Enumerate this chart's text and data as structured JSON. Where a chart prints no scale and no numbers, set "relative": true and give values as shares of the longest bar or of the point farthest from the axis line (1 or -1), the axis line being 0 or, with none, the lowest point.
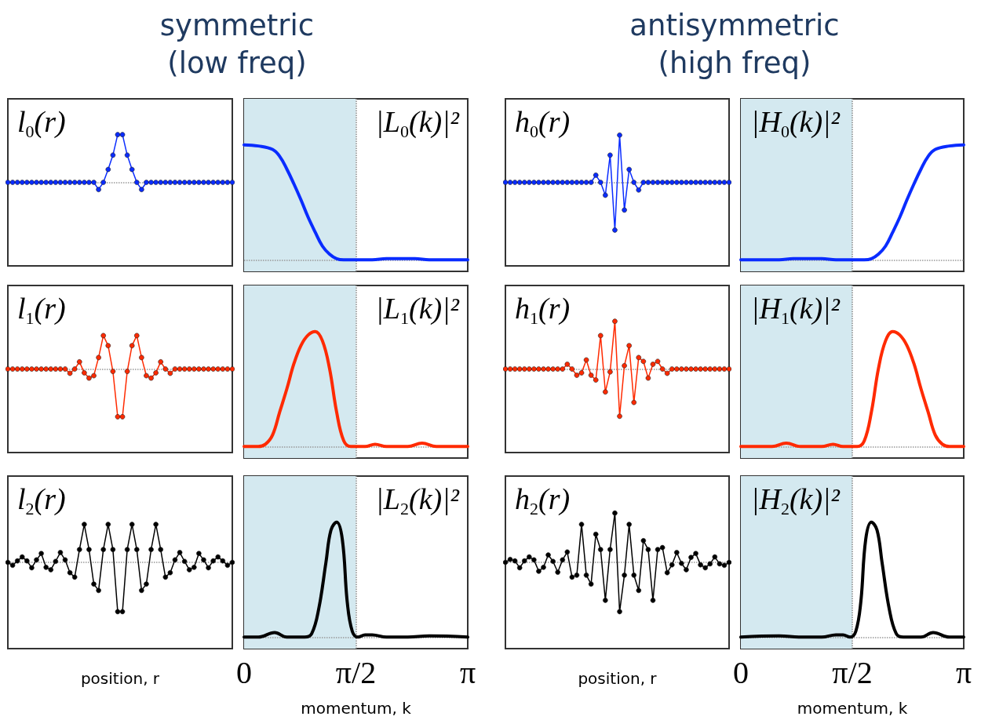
{
  "chart_data": [
    {
      "type": "line",
      "title": "l$_{0}$(r)",
      "subtitle": "symmetric\n(low freq)",
      "relative": true,
      "marker": "circle",
      "color": "#0a2cff",
      "categories": [
        null,
        null,
        null,
        null,
        null,
        null,
        null,
        null,
        null,
        null,
        null,
        null,
        null,
        null,
        null,
        null,
        null,
        null,
        null,
        null,
        null,
        null,
        null,
        null,
        null,
        null,
        null,
        null,
        null,
        null,
        null,
        null,
        null,
        null,
        null,
        null,
        null,
        null,
        null,
        null,
        null,
        null,
        null,
        null,
        null,
        null,
        null,
        null
      ],
      "values": [
        0,
        0,
        0,
        0,
        0,
        0,
        0,
        0,
        0,
        0,
        0,
        0,
        0,
        0,
        0,
        0,
        0,
        0,
        0,
        -0.15,
        0,
        0.27,
        0.57,
        1,
        1,
        0.57,
        0.27,
        0,
        -0.15,
        0,
        0,
        0,
        0,
        0,
        0,
        0,
        0,
        0,
        0,
        0,
        0,
        0,
        0,
        0,
        0,
        0,
        0,
        0
      ],
      "ref_lines": [
        {
          "axis": "y",
          "value": 0,
          "color": "#999999",
          "line_style": "dotted"
        }
      ]
    },
    {
      "type": "line",
      "title": "|L$_{0}$(k)|²",
      "relative": true,
      "color": "#0a2cff",
      "xlim": [
        0,
        3.1416
      ],
      "tick_labels": false,
      "x": [
        0,
        0.2,
        0.4,
        0.5,
        0.6,
        0.7,
        0.8,
        0.9,
        1.0,
        1.1,
        1.2,
        1.3,
        1.4,
        1.57,
        1.8,
        2.0,
        2.2,
        2.4,
        2.6,
        2.8,
        3.1416
      ],
      "values": [
        1,
        0.99,
        0.96,
        0.9,
        0.79,
        0.66,
        0.52,
        0.37,
        0.24,
        0.12,
        0.05,
        0.01,
        0,
        0,
        0,
        0.01,
        0.01,
        0.01,
        0,
        0,
        0
      ],
      "bands": [
        {
          "axis": "x",
          "from": 0,
          "to": 1.5708,
          "color": "#d4e9f0"
        }
      ],
      "ref_lines": [
        {
          "axis": "x",
          "value": 1.5708,
          "color": "#888888",
          "line_style": "dotted"
        },
        {
          "axis": "y",
          "value": 0,
          "color": "#999999",
          "line_style": "dotted"
        }
      ]
    },
    {
      "type": "line",
      "title": "h$_{0}$(r)",
      "subtitle": "antisymmetric\n(high freq)",
      "relative": true,
      "marker": "circle",
      "color": "#0a2cff",
      "categories": [
        null,
        null,
        null,
        null,
        null,
        null,
        null,
        null,
        null,
        null,
        null,
        null,
        null,
        null,
        null,
        null,
        null,
        null,
        null,
        null,
        null,
        null,
        null,
        null,
        null,
        null,
        null,
        null,
        null,
        null,
        null,
        null,
        null,
        null,
        null,
        null,
        null,
        null,
        null,
        null,
        null,
        null,
        null,
        null,
        null,
        null,
        null,
        null
      ],
      "values": [
        0,
        0,
        0,
        0,
        0,
        0,
        0,
        0,
        0,
        0,
        0,
        0,
        0,
        0,
        0,
        0,
        0,
        0,
        0,
        0.15,
        0,
        -0.27,
        0.57,
        -1,
        0.99,
        -0.58,
        0.27,
        0,
        -0.16,
        0,
        0,
        0,
        0,
        0,
        0,
        0,
        0,
        0,
        0,
        0,
        0,
        0,
        0,
        0,
        0,
        0,
        0,
        0
      ],
      "ref_lines": [
        {
          "axis": "y",
          "value": 0,
          "color": "#999999",
          "line_style": "dotted"
        }
      ]
    },
    {
      "type": "line",
      "title": "|H$_{0}$(k)|²",
      "relative": true,
      "color": "#0a2cff",
      "xlim": [
        0,
        3.1416
      ],
      "tick_labels": false,
      "x": [
        0,
        0.34,
        0.54,
        0.74,
        0.94,
        1.14,
        1.34,
        1.57,
        1.74,
        1.84,
        1.94,
        2.04,
        2.14,
        2.24,
        2.34,
        2.44,
        2.54,
        2.64,
        2.74,
        2.94,
        3.1416
      ],
      "values": [
        0,
        0,
        0,
        0.01,
        0.01,
        0.01,
        0,
        0,
        0,
        0.01,
        0.05,
        0.12,
        0.24,
        0.37,
        0.52,
        0.66,
        0.79,
        0.9,
        0.96,
        0.99,
        1
      ],
      "bands": [
        {
          "axis": "x",
          "from": 0,
          "to": 1.5708,
          "color": "#d4e9f0"
        }
      ],
      "ref_lines": [
        {
          "axis": "x",
          "value": 1.5708,
          "color": "#888888",
          "line_style": "dotted"
        },
        {
          "axis": "y",
          "value": 0,
          "color": "#999999",
          "line_style": "dotted"
        }
      ]
    },
    {
      "type": "line",
      "title": "l$_{1}$(r)",
      "relative": true,
      "marker": "circle",
      "color": "#ff2a00",
      "categories": [
        null,
        null,
        null,
        null,
        null,
        null,
        null,
        null,
        null,
        null,
        null,
        null,
        null,
        null,
        null,
        null,
        null,
        null,
        null,
        null,
        null,
        null,
        null,
        null,
        null,
        null,
        null,
        null,
        null,
        null,
        null,
        null,
        null,
        null,
        null,
        null,
        null,
        null,
        null,
        null,
        null,
        null,
        null,
        null,
        null,
        null,
        null,
        null
      ],
      "values": [
        0,
        0,
        0,
        0,
        0,
        0,
        0,
        0,
        0,
        0,
        0,
        0,
        0,
        -0.09,
        0,
        0.15,
        -0.08,
        -0.19,
        -0.14,
        0.24,
        0.7,
        0.49,
        -0.05,
        -1,
        -1,
        -0.05,
        0.49,
        0.7,
        0.24,
        -0.14,
        -0.19,
        -0.08,
        0.15,
        0,
        -0.09,
        0,
        0,
        0,
        0,
        0,
        0,
        0,
        0,
        0,
        0,
        0,
        0,
        0
      ],
      "ref_lines": [
        {
          "axis": "y",
          "value": 0,
          "color": "#999999",
          "line_style": "dotted"
        }
      ]
    },
    {
      "type": "line",
      "title": "|L$_{1}$(k)|²",
      "relative": true,
      "color": "#ff2a00",
      "xlim": [
        0,
        3.1416
      ],
      "tick_labels": false,
      "x": [
        0,
        0.2,
        0.3,
        0.4,
        0.5,
        0.6,
        0.7,
        0.8,
        0.9,
        1.0,
        1.1,
        1.2,
        1.3,
        1.4,
        1.5,
        1.7,
        1.84,
        2.0,
        2.3,
        2.5,
        2.7,
        3.1416
      ],
      "values": [
        0,
        0,
        0.02,
        0.1,
        0.3,
        0.5,
        0.72,
        0.88,
        0.97,
        1,
        0.92,
        0.68,
        0.3,
        0.05,
        0,
        0,
        0.02,
        0,
        0,
        0.03,
        0,
        0
      ],
      "bands": [
        {
          "axis": "x",
          "from": 0,
          "to": 1.5708,
          "color": "#d4e9f0"
        }
      ],
      "ref_lines": [
        {
          "axis": "x",
          "value": 1.5708,
          "color": "#888888",
          "line_style": "dotted"
        },
        {
          "axis": "y",
          "value": 0,
          "color": "#999999",
          "line_style": "dotted"
        }
      ]
    },
    {
      "type": "line",
      "title": "h$_{1}$(r)",
      "relative": true,
      "marker": "circle",
      "color": "#ff2a00",
      "categories": [
        null,
        null,
        null,
        null,
        null,
        null,
        null,
        null,
        null,
        null,
        null,
        null,
        null,
        null,
        null,
        null,
        null,
        null,
        null,
        null,
        null,
        null,
        null,
        null,
        null,
        null,
        null,
        null,
        null,
        null,
        null,
        null,
        null,
        null,
        null,
        null,
        null,
        null,
        null,
        null,
        null,
        null,
        null,
        null,
        null,
        null,
        null,
        null
      ],
      "values": [
        0,
        0,
        0,
        0,
        0,
        0,
        0,
        0,
        0,
        0,
        0,
        0,
        0,
        0.1,
        0,
        -0.13,
        -0.08,
        0.19,
        -0.13,
        -0.23,
        0.7,
        -0.48,
        -0.06,
        1,
        -0.99,
        0.07,
        0.49,
        -0.7,
        0.24,
        0.16,
        -0.19,
        0.1,
        0.16,
        0,
        -0.09,
        0,
        0,
        0,
        0,
        0,
        0,
        0,
        0,
        0,
        0,
        0,
        0,
        0
      ],
      "ref_lines": [
        {
          "axis": "y",
          "value": 0,
          "color": "#999999",
          "line_style": "dotted"
        }
      ]
    },
    {
      "type": "line",
      "title": "|H$_{1}$(k)|²",
      "relative": true,
      "color": "#ff2a00",
      "xlim": [
        0,
        3.1416
      ],
      "tick_labels": false,
      "x": [
        0,
        0.44,
        0.64,
        0.84,
        1.14,
        1.3,
        1.44,
        1.64,
        1.74,
        1.84,
        1.94,
        2.04,
        2.14,
        2.24,
        2.34,
        2.44,
        2.54,
        2.64,
        2.74,
        2.84,
        2.94,
        3.1416
      ],
      "values": [
        0,
        0,
        0.03,
        0,
        0,
        0.02,
        0,
        0,
        0.05,
        0.3,
        0.68,
        0.92,
        1,
        0.97,
        0.88,
        0.72,
        0.5,
        0.3,
        0.1,
        0.02,
        0,
        0
      ],
      "bands": [
        {
          "axis": "x",
          "from": 0,
          "to": 1.5708,
          "color": "#d4e9f0"
        }
      ],
      "ref_lines": [
        {
          "axis": "x",
          "value": 1.5708,
          "color": "#888888",
          "line_style": "dotted"
        },
        {
          "axis": "y",
          "value": 0,
          "color": "#999999",
          "line_style": "dotted"
        }
      ]
    },
    {
      "type": "line",
      "title": "l$_{2}$(r)",
      "xlabel": "position, r",
      "relative": true,
      "marker": "circle",
      "color": "#000000",
      "categories": [
        null,
        null,
        null,
        null,
        null,
        null,
        null,
        null,
        null,
        null,
        null,
        null,
        null,
        null,
        null,
        null,
        null,
        null,
        null,
        null,
        null,
        null,
        null,
        null,
        null,
        null,
        null,
        null,
        null,
        null,
        null,
        null,
        null,
        null,
        null,
        null,
        null,
        null,
        null,
        null,
        null,
        null,
        null,
        null,
        null,
        null,
        null,
        null
      ],
      "values": [
        0,
        -0.06,
        0.03,
        0.11,
        0.03,
        -0.11,
        0.05,
        0.18,
        -0.1,
        -0.15,
        0.02,
        0.2,
        0.05,
        -0.21,
        -0.3,
        0.26,
        0.77,
        0.26,
        -0.44,
        -0.57,
        0.26,
        0.77,
        0.26,
        -1,
        -1,
        0.26,
        0.77,
        0.26,
        -0.57,
        -0.44,
        0.26,
        0.77,
        0.26,
        -0.3,
        -0.21,
        0.05,
        0.2,
        0.02,
        -0.15,
        -0.1,
        0.18,
        0.05,
        -0.11,
        0.03,
        0.11,
        0.03,
        -0.06,
        0
      ],
      "ref_lines": [
        {
          "axis": "y",
          "value": 0,
          "color": "#999999",
          "line_style": "dotted"
        }
      ]
    },
    {
      "type": "line",
      "title": "|L$_{2}$(k)|²",
      "xlabel": "momentum, k",
      "relative": true,
      "color": "#000000",
      "xlim": [
        0,
        3.1416
      ],
      "xticks": [
        {
          "value": 0,
          "label": "0"
        },
        {
          "value": 1.5708,
          "label": "π/2"
        },
        {
          "value": 3.1416,
          "label": "π"
        }
      ],
      "tick_labels": "x",
      "x": [
        0,
        0.2,
        0.43,
        0.6,
        0.85,
        0.95,
        1.05,
        1.15,
        1.22,
        1.3,
        1.38,
        1.45,
        1.52,
        1.6,
        1.7,
        1.8,
        2.0,
        2.3,
        2.6,
        3.1416
      ],
      "values": [
        0,
        0,
        0.04,
        0,
        0,
        0.03,
        0.25,
        0.65,
        0.93,
        1,
        0.85,
        0.3,
        0.05,
        0,
        0.02,
        0.02,
        0,
        0,
        0.01,
        0
      ],
      "bands": [
        {
          "axis": "x",
          "from": 0,
          "to": 1.5708,
          "color": "#d4e9f0"
        }
      ],
      "ref_lines": [
        {
          "axis": "x",
          "value": 1.5708,
          "color": "#888888",
          "line_style": "dotted"
        },
        {
          "axis": "y",
          "value": 0,
          "color": "#999999",
          "line_style": "dotted"
        }
      ]
    },
    {
      "type": "line",
      "title": "h$_{2}$(r)",
      "xlabel": "position, r",
      "relative": true,
      "marker": "circle",
      "color": "#000000",
      "categories": [
        null,
        null,
        null,
        null,
        null,
        null,
        null,
        null,
        null,
        null,
        null,
        null,
        null,
        null,
        null,
        null,
        null,
        null,
        null,
        null,
        null,
        null,
        null,
        null,
        null,
        null,
        null,
        null,
        null,
        null,
        null,
        null,
        null,
        null,
        null,
        null,
        null,
        null,
        null,
        null,
        null,
        null,
        null,
        null,
        null,
        null,
        null,
        null
      ],
      "values": [
        0,
        0.06,
        0.03,
        -0.11,
        0.03,
        0.11,
        0.05,
        -0.18,
        -0.1,
        0.15,
        0.02,
        -0.2,
        0.05,
        0.21,
        -0.3,
        -0.26,
        0.77,
        -0.26,
        -0.44,
        0.57,
        0.26,
        -0.77,
        0.26,
        1,
        -1,
        -0.26,
        0.77,
        -0.26,
        -0.57,
        0.44,
        0.26,
        -0.77,
        0.26,
        0.3,
        -0.21,
        -0.05,
        0.2,
        -0.02,
        -0.15,
        0.1,
        0.18,
        -0.05,
        -0.11,
        -0.03,
        0.11,
        -0.03,
        -0.06,
        0
      ],
      "ref_lines": [
        {
          "axis": "y",
          "value": 0,
          "color": "#999999",
          "line_style": "dotted"
        }
      ]
    },
    {
      "type": "line",
      "title": "|H$_{2}$(k)|²",
      "xlabel": "momentum, k",
      "relative": true,
      "color": "#000000",
      "xlim": [
        0,
        3.1416
      ],
      "xticks": [
        {
          "value": 0,
          "label": "0"
        },
        {
          "value": 1.5708,
          "label": "π/2"
        },
        {
          "value": 3.1416,
          "label": "π"
        }
      ],
      "tick_labels": "x",
      "x": [
        0,
        0.54,
        0.84,
        1.14,
        1.34,
        1.44,
        1.54,
        1.62,
        1.69,
        1.76,
        1.84,
        1.92,
        1.99,
        2.09,
        2.19,
        2.29,
        2.54,
        2.71,
        2.94,
        3.1416
      ],
      "values": [
        0,
        0.01,
        0,
        0,
        0.02,
        0.02,
        0,
        0.05,
        0.3,
        0.85,
        1,
        0.93,
        0.65,
        0.25,
        0.03,
        0,
        0,
        0.04,
        0,
        0
      ],
      "bands": [
        {
          "axis": "x",
          "from": 0,
          "to": 1.5708,
          "color": "#d4e9f0"
        }
      ],
      "ref_lines": [
        {
          "axis": "x",
          "value": 1.5708,
          "color": "#888888",
          "line_style": "dotted"
        },
        {
          "axis": "y",
          "value": 0,
          "color": "#999999",
          "line_style": "dotted"
        }
      ]
    }
  ]
}
